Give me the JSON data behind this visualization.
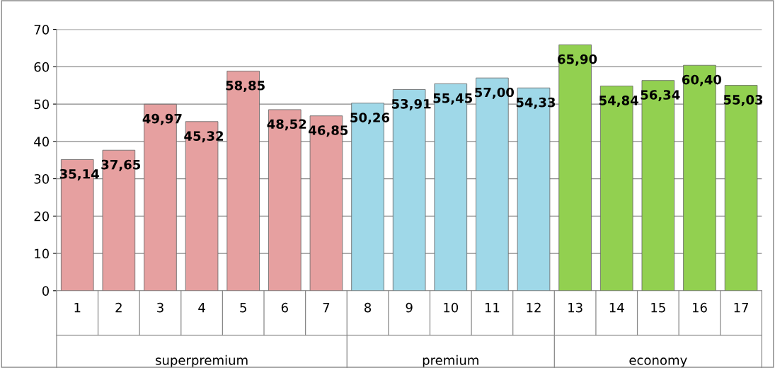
{
  "chart_data": {
    "type": "bar",
    "categories": [
      "1",
      "2",
      "3",
      "4",
      "5",
      "6",
      "7",
      "8",
      "9",
      "10",
      "11",
      "12",
      "13",
      "14",
      "15",
      "16",
      "17"
    ],
    "values": [
      35.14,
      37.65,
      49.97,
      45.32,
      58.85,
      48.52,
      46.85,
      50.26,
      53.91,
      55.45,
      57.0,
      54.33,
      65.9,
      54.84,
      56.34,
      60.4,
      55.03
    ],
    "value_labels": [
      "35,14",
      "37,65",
      "49,97",
      "45,32",
      "58,85",
      "48,52",
      "46,85",
      "50,26",
      "53,91",
      "55,45",
      "57,00",
      "54,33",
      "65,90",
      "54,84",
      "56,34",
      "60,40",
      "55,03"
    ],
    "colors": [
      "#e6a0a0",
      "#e6a0a0",
      "#e6a0a0",
      "#e6a0a0",
      "#e6a0a0",
      "#e6a0a0",
      "#e6a0a0",
      "#9fd8e8",
      "#9fd8e8",
      "#9fd8e8",
      "#9fd8e8",
      "#9fd8e8",
      "#92d050",
      "#92d050",
      "#92d050",
      "#92d050",
      "#92d050"
    ],
    "annotations": [
      "superpremium",
      "premium",
      "economy"
    ],
    "ylim": [
      0,
      70
    ],
    "yticks": [
      0,
      10,
      20,
      30,
      40,
      50,
      60,
      70
    ],
    "grid": "y",
    "legend": false
  }
}
